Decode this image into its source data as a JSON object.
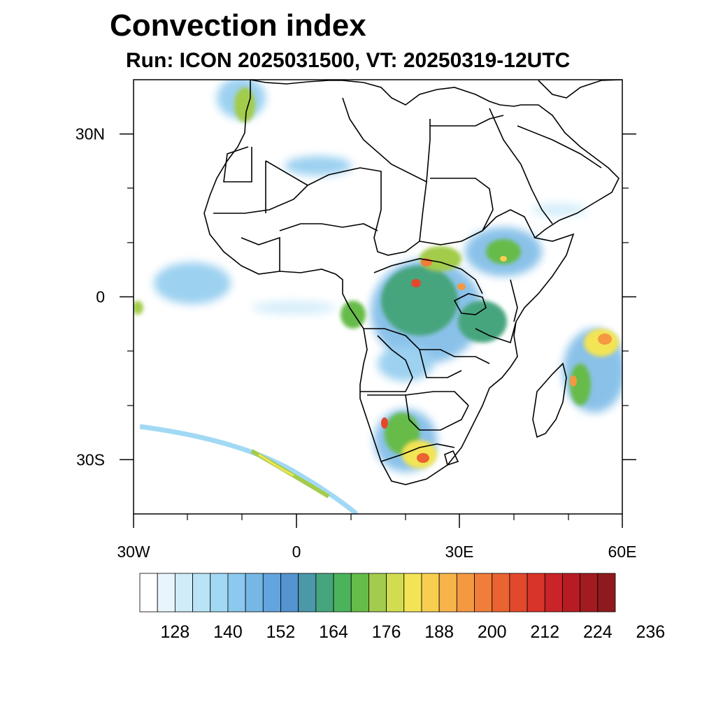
{
  "title": "Convection index",
  "subtitle": "Run: ICON 2025031500,  VT: 20250319-12UTC",
  "map": {
    "lon_range": [
      -30,
      60
    ],
    "lat_range": [
      -40,
      40
    ],
    "lon_ticks": [
      {
        "lon": -30,
        "label": "30W"
      },
      {
        "lon": 0,
        "label": "0"
      },
      {
        "lon": 30,
        "label": "30E"
      },
      {
        "lon": 60,
        "label": "60E"
      }
    ],
    "lat_ticks": [
      {
        "lat": 30,
        "label": "30N"
      },
      {
        "lat": 0,
        "label": "0"
      },
      {
        "lat": -30,
        "label": "30S"
      }
    ]
  },
  "colorbar": {
    "colors": [
      "#ffffff",
      "#e8f5fc",
      "#d0ecf9",
      "#b9e3f6",
      "#a1d9f4",
      "#8bc9ee",
      "#76b7e6",
      "#62a4dd",
      "#5394d1",
      "#4a98a8",
      "#47a57e",
      "#4bb35a",
      "#66bb4a",
      "#a3cc4c",
      "#d2dc50",
      "#f2e455",
      "#f8ce50",
      "#f7b44a",
      "#f59842",
      "#f07d39",
      "#ea6331",
      "#e2492c",
      "#d93429",
      "#c92427",
      "#b71c23",
      "#a11b1f",
      "#8e1a1d"
    ],
    "labels": [
      "128",
      "140",
      "152",
      "164",
      "176",
      "188",
      "200",
      "212",
      "224",
      "236"
    ]
  }
}
